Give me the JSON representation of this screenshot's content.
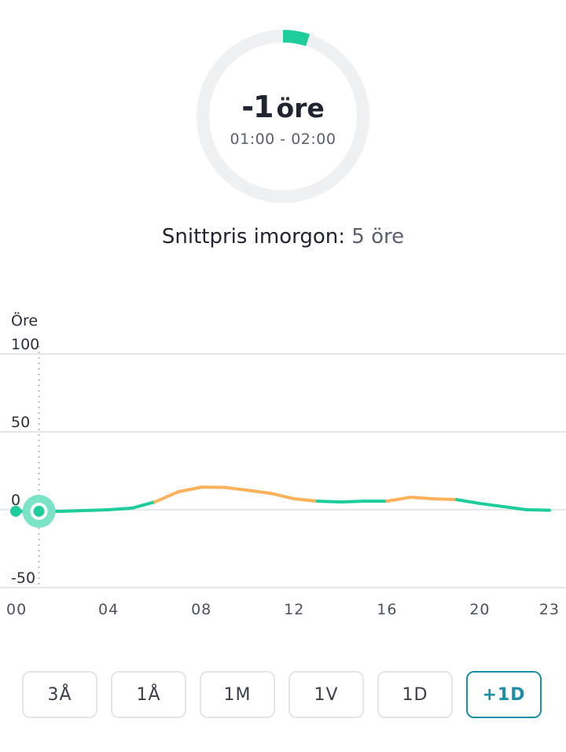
{
  "current": {
    "value": "-1",
    "unit": "öre",
    "interval": "01:00 - 02:00",
    "ring_fraction": 0.05
  },
  "average": {
    "label": "Snittpris imorgon:",
    "value": "5 öre"
  },
  "range_buttons": [
    {
      "label": "3Å",
      "active": false
    },
    {
      "label": "1Å",
      "active": false
    },
    {
      "label": "1M",
      "active": false
    },
    {
      "label": "1V",
      "active": false
    },
    {
      "label": "1D",
      "active": false
    },
    {
      "label": "+1D",
      "active": true
    }
  ],
  "colors": {
    "green": "#1fcc9c",
    "orange": "#ffb15c",
    "active_border": "#1b8fa6",
    "ring_track": "#eff0f2",
    "highlight_halo": "#7be3c8"
  },
  "chart_data": {
    "type": "line",
    "ylabel": "Öre",
    "ylim": [
      -50,
      100
    ],
    "yticks": [
      100,
      50,
      0,
      -50
    ],
    "xlim": [
      0,
      23
    ],
    "xticks": [
      "00",
      "04",
      "08",
      "12",
      "16",
      "20",
      "23"
    ],
    "x": [
      0,
      1,
      2,
      3,
      4,
      5,
      6,
      7,
      8,
      9,
      10,
      11,
      12,
      13,
      14,
      15,
      16,
      17,
      18,
      19,
      20,
      21,
      22,
      23
    ],
    "series": [
      {
        "values": [
          -1,
          -1,
          -1,
          -0.5,
          0,
          1,
          5,
          11.5,
          14.5,
          14.3,
          12.5,
          10.5,
          7,
          5.5,
          5,
          5.5,
          5.5,
          8,
          7,
          6.5,
          4,
          2,
          0,
          -0.3
        ]
      }
    ],
    "color_threshold": 6,
    "highlight_x": 1,
    "grid": true
  }
}
